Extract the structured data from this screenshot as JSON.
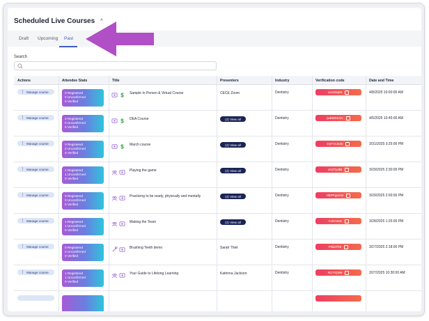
{
  "header": {
    "title": "Scheduled Live Courses",
    "caret": "^"
  },
  "tabs": [
    {
      "label": "Draft"
    },
    {
      "label": "Upcoming"
    },
    {
      "label": "Past",
      "active": true
    }
  ],
  "search": {
    "label": "Search",
    "placeholder": "",
    "value": ""
  },
  "columns": [
    "Actions",
    "Attendee Stats",
    "Title",
    "Presenters",
    "Industry",
    "Verification code",
    "Date and Time"
  ],
  "accent": "#3e5cc4",
  "rows": [
    {
      "manage": "Manage course",
      "stats": [
        "0 Registered",
        "0 Unconfirmed",
        "0 Verified"
      ],
      "icons": [
        "webinar-icon",
        "dollar-icon"
      ],
      "title": "Sample In Person & Virtual Course",
      "presenter": "CECE Zoom",
      "view_all": "",
      "industry": "Dentistry",
      "code": "UvzD8pt8",
      "date": "4/8/2025 10:00:00 AM"
    },
    {
      "manage": "Manage course",
      "stats": [
        "0 Registered",
        "0 Unconfirmed",
        "0 Verified"
      ],
      "icons": [
        "webinar-icon",
        "dollar-icon"
      ],
      "title": "DEA Course",
      "presenter": "",
      "view_all": "(2) View all",
      "industry": "Dentistry",
      "code": "jwBW5EOv",
      "date": "4/5/2025 10:45:00 AM"
    },
    {
      "manage": "Manage course",
      "stats": [
        "0 Registered",
        "0 Unconfirmed",
        "0 Verified"
      ],
      "icons": [
        "webinar-icon",
        "dollar-icon"
      ],
      "title": "March course",
      "presenter": "",
      "view_all": "(2) View all",
      "industry": "Dentistry",
      "code": "DyFVLBw5",
      "date": "3/31/2025 3:25:00 PM"
    },
    {
      "manage": "Manage course",
      "stats": [
        "1 Registered",
        "1 Unconfirmed",
        "0 Verified"
      ],
      "icons": [
        "people-icon",
        "webinar-icon"
      ],
      "title": "Playing the game",
      "presenter": "",
      "view_all": "(2) View all",
      "industry": "Dentistry",
      "code": "xGZTydBt",
      "date": "3/29/2025 2:30:00 PM"
    },
    {
      "manage": "Manage course",
      "stats": [
        "0 Registered",
        "0 Unconfirmed",
        "0 Verified"
      ],
      "icons": [
        "people-icon",
        "webinar-icon"
      ],
      "title": "Practicing to be ready, physically and mentally",
      "presenter": "",
      "view_all": "(2) View all",
      "industry": "Dentistry",
      "code": "H6PPgamm",
      "date": "3/29/2025 2:00:00 PM"
    },
    {
      "manage": "Manage course",
      "stats": [
        "1 Registered",
        "1 Unconfirmed",
        "0 Verified"
      ],
      "icons": [
        "people-icon",
        "webinar-icon"
      ],
      "title": "Making the Team",
      "presenter": "",
      "view_all": "(2) View all",
      "industry": "Dentistry",
      "code": "YxhCW1t",
      "date": "3/28/2025 1:25:00 PM"
    },
    {
      "manage": "Manage course",
      "stats": [
        "0 Registered",
        "0 Unconfirmed",
        "0 Verified"
      ],
      "icons": [
        "toothbrush-icon",
        "webinar-icon"
      ],
      "title": "Brushing Teeth demo",
      "presenter": "Sarah Thiel",
      "view_all": "",
      "industry": "Dentistry",
      "code": "P5bd7k9",
      "date": "3/27/2025 2:18:00 PM"
    },
    {
      "manage": "Manage course",
      "stats": [
        "1 Registered",
        "1 Unconfirmed",
        "0 Verified"
      ],
      "icons": [
        "people-icon",
        "webinar-icon"
      ],
      "title": "Your Guide to Lifelong Learning",
      "presenter": "Katrinna Jackson",
      "view_all": "",
      "industry": "Dentistry",
      "code": "9CrYQWe",
      "date": "3/27/2025 10:30:00 AM"
    }
  ]
}
